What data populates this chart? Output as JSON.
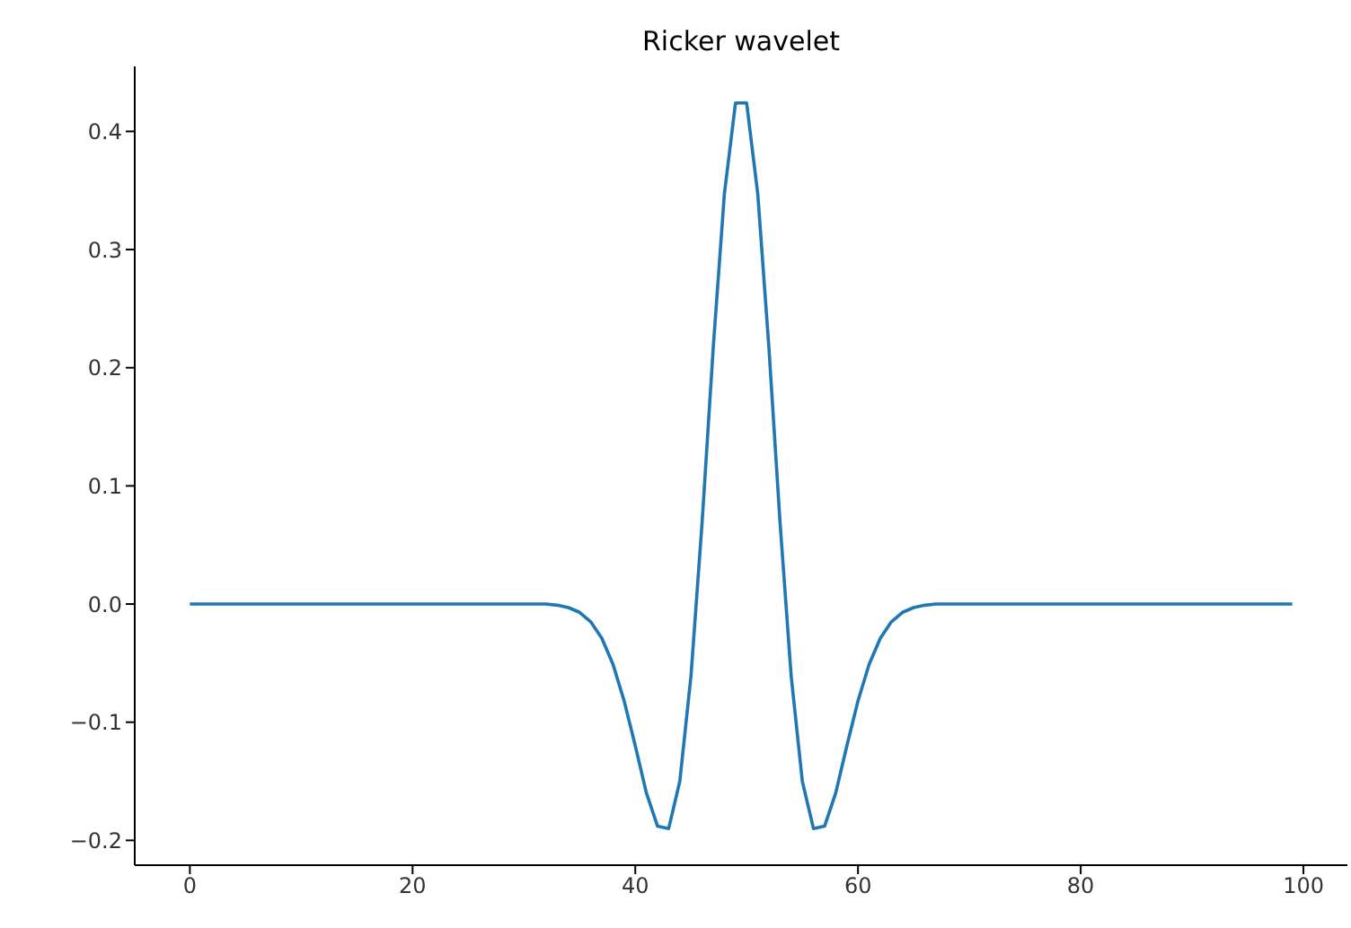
{
  "chart_data": {
    "type": "line",
    "title": "Ricker wavelet",
    "x": [
      0,
      32,
      33,
      34,
      35,
      36,
      37,
      38,
      39,
      40,
      41,
      42,
      43,
      44,
      45,
      46,
      47,
      48,
      49,
      50,
      51,
      52,
      53,
      54,
      55,
      56,
      57,
      58,
      59,
      60,
      61,
      62,
      63,
      64,
      65,
      66,
      67,
      99
    ],
    "series": [
      {
        "color": "#1f77b4",
        "values": [
          0,
          0,
          -0.001,
          -0.003,
          -0.007,
          -0.015,
          -0.029,
          -0.051,
          -0.082,
          -0.12,
          -0.16,
          -0.188,
          -0.19,
          -0.15,
          -0.061,
          0.069,
          0.217,
          0.347,
          0.424,
          0.424,
          0.347,
          0.217,
          0.069,
          -0.061,
          -0.15,
          -0.19,
          -0.188,
          -0.16,
          -0.12,
          -0.082,
          -0.051,
          -0.029,
          -0.015,
          -0.007,
          -0.003,
          -0.001,
          0,
          0
        ]
      }
    ],
    "xlim": [
      -4.95,
      103.95
    ],
    "xticks": [
      0,
      20,
      40,
      60,
      80,
      100
    ],
    "ylim": [
      -0.221,
      0.455
    ],
    "yticks": [
      {
        "value": -0.2,
        "label": "−0.2"
      },
      {
        "value": -0.1,
        "label": "−0.1"
      },
      {
        "value": 0,
        "label": "0.0"
      },
      {
        "value": 0.1,
        "label": "0.1"
      },
      {
        "value": 0.2,
        "label": "0.2"
      },
      {
        "value": 0.3,
        "label": "0.3"
      },
      {
        "value": 0.4,
        "label": "0.4"
      }
    ],
    "grid": false,
    "legend": false,
    "marker": "none",
    "line_style": "solid"
  }
}
